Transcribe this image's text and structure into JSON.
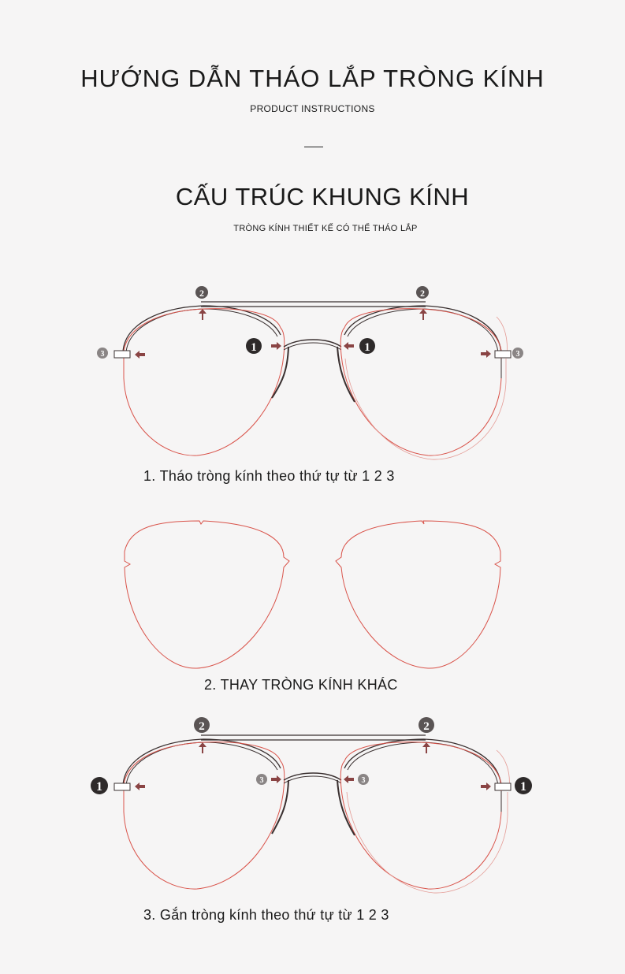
{
  "header": {
    "title": "HƯỚNG DẪN THÁO LẮP TRÒNG KÍNH",
    "subtitle": "PRODUCT INSTRUCTIONS"
  },
  "section": {
    "title": "CẤU TRÚC KHUNG KÍNH",
    "subtitle": "TRÒNG KÍNH THIẾT KẾ CÓ THỂ THÁO LẮP"
  },
  "steps": [
    {
      "label": "1. Tháo tròng kính theo thứ tự từ 1 2 3",
      "markers": {
        "top": "2",
        "bridge": "1",
        "temple": "3"
      }
    },
    {
      "label": "2. THAY TRÒNG KÍNH KHÁC"
    },
    {
      "label": "3. Gắn tròng kính theo thứ tự từ 1 2 3",
      "markers": {
        "top": "2",
        "bridge": "3",
        "temple": "1"
      }
    }
  ],
  "colors": {
    "lens": "#d9534a",
    "frame": "#3a3030",
    "arrow": "#8a4444",
    "badge_dark": "#2e2a2a",
    "badge_gray": "#8a8585"
  }
}
